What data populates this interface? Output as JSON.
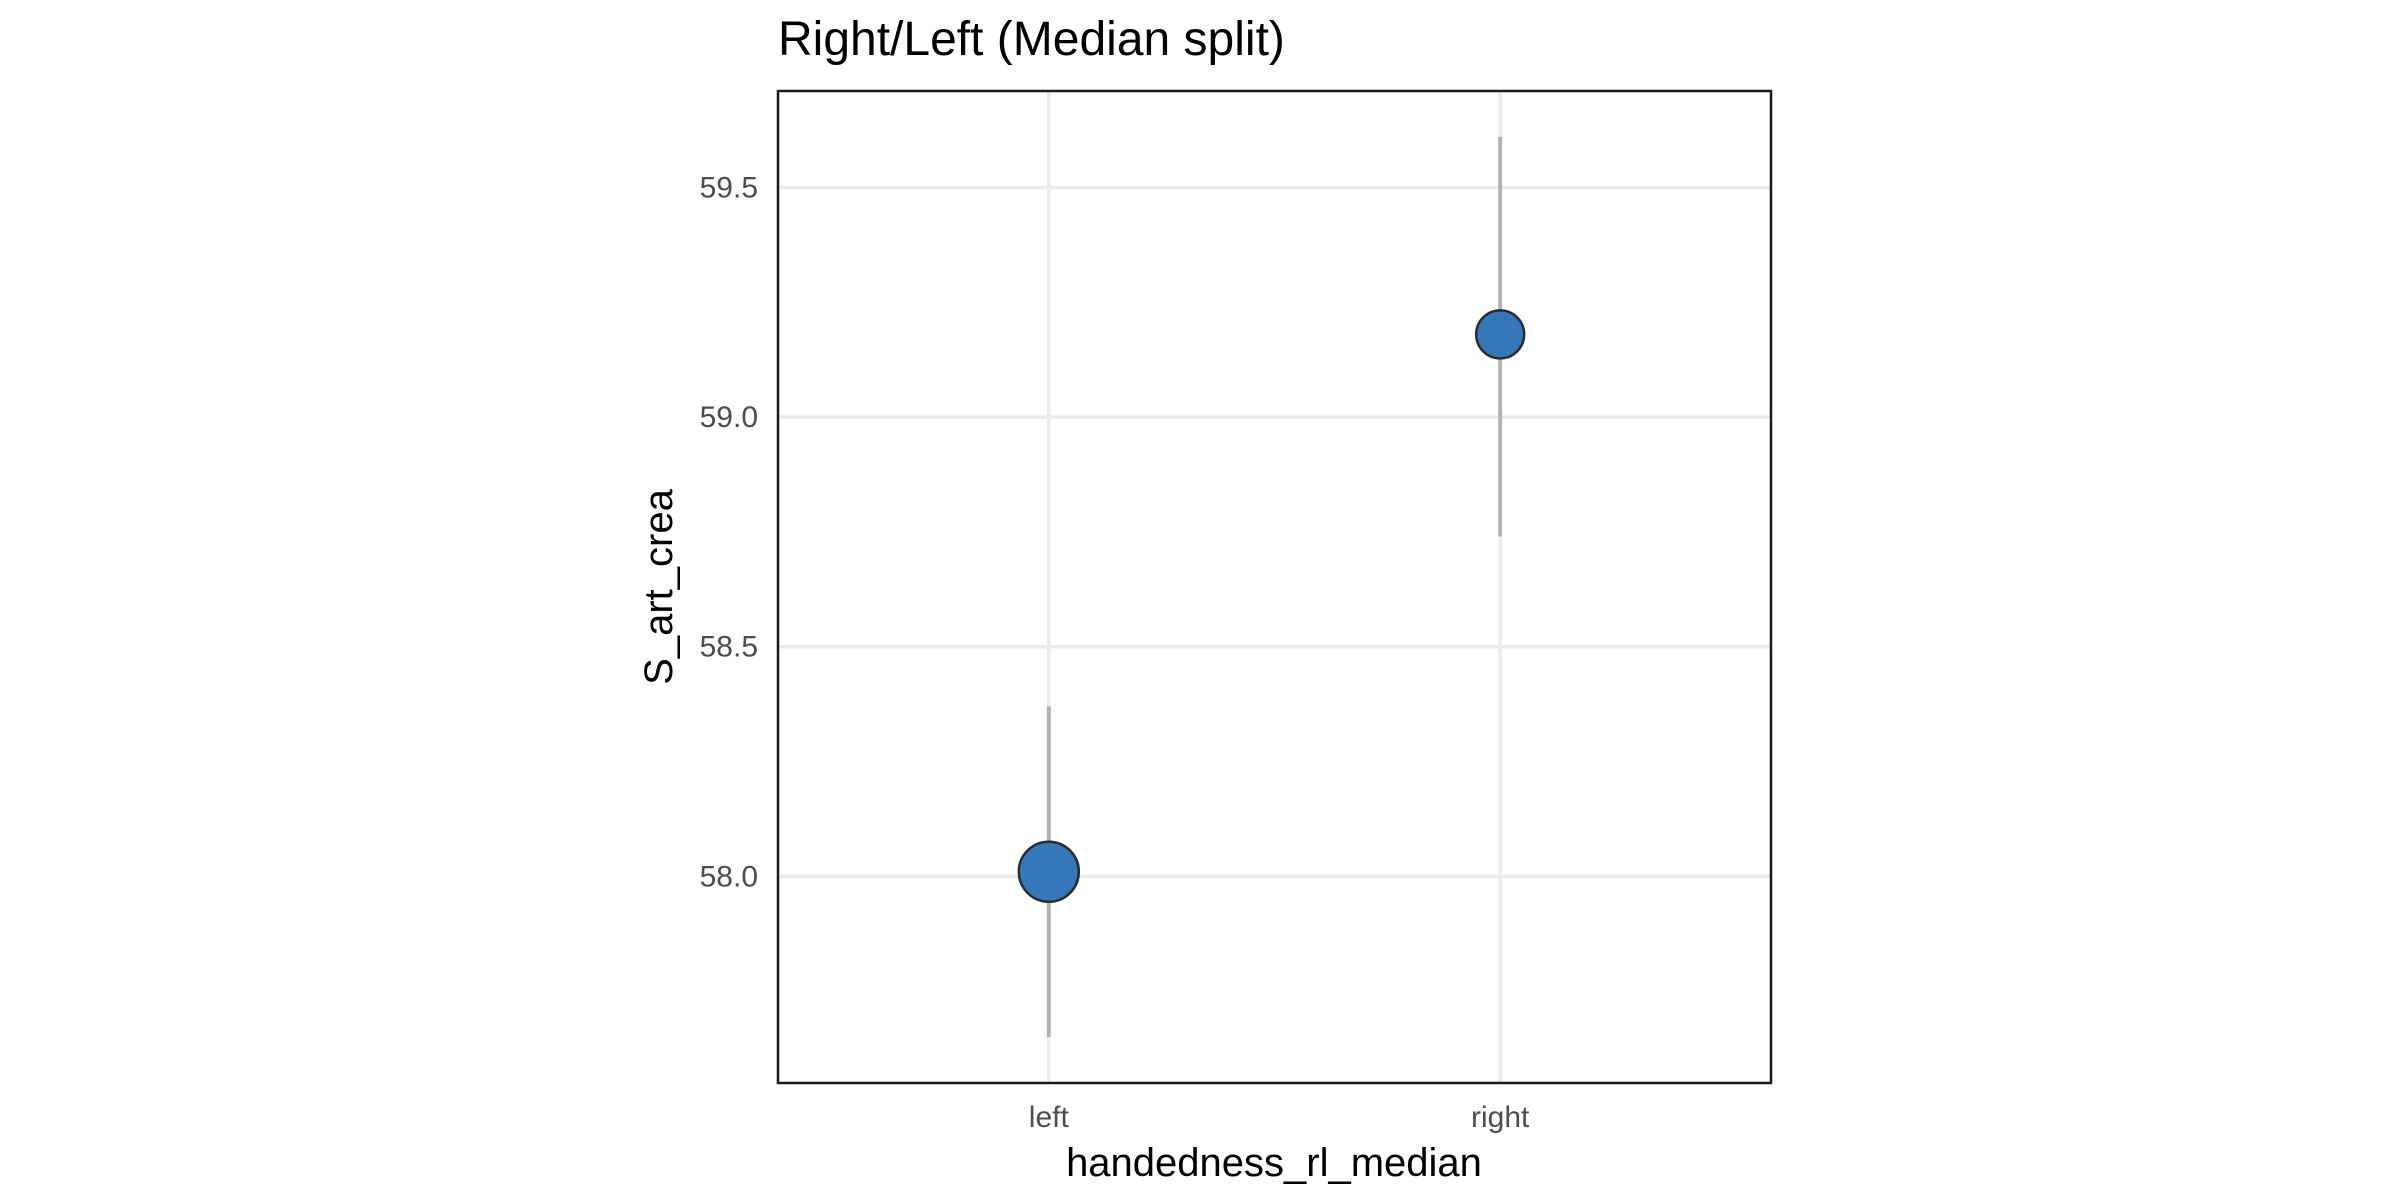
{
  "chart_data": {
    "type": "scatter",
    "title": "Right/Left (Median split)",
    "xlabel": "handedness_rl_median",
    "ylabel": "S_art_crea",
    "categories": [
      "left",
      "right"
    ],
    "y_ticks": [
      {
        "value": 58.0,
        "label": "58.0"
      },
      {
        "value": 58.5,
        "label": "58.5"
      },
      {
        "value": 59.0,
        "label": "59.0"
      },
      {
        "value": 59.5,
        "label": "59.5"
      }
    ],
    "ylim": [
      57.55,
      59.71
    ],
    "grid": true,
    "points": [
      {
        "category": "left",
        "y": 58.01,
        "ymin": 57.65,
        "ymax": 58.37,
        "size": "large"
      },
      {
        "category": "right",
        "y": 59.18,
        "ymin": 58.74,
        "ymax": 59.61,
        "size": "small"
      }
    ],
    "point_color": "#3478b9",
    "point_border_color": "#2b2b2b",
    "errorbar_color": "#b3b3b3",
    "grid_color": "#ebebeb"
  }
}
